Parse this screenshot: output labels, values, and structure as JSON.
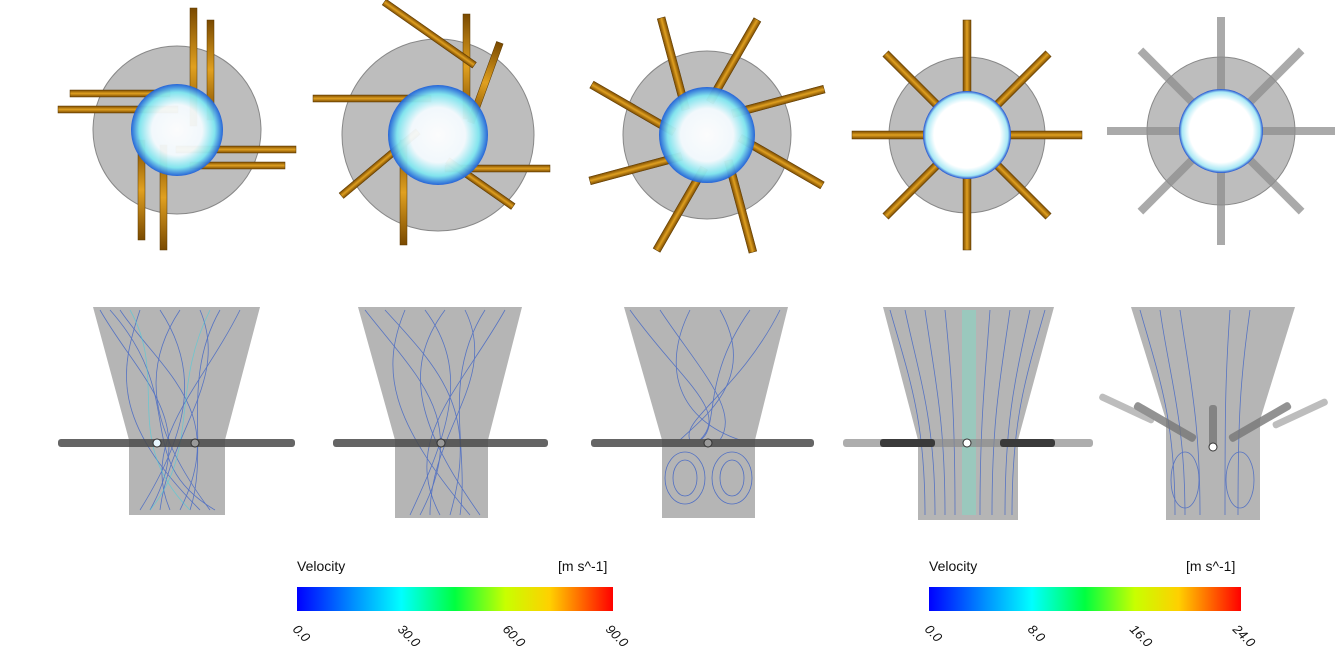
{
  "panels": {
    "top_views": [
      {
        "name": "top-view-1",
        "nozzles": 8,
        "swirl": "tangential"
      },
      {
        "name": "top-view-2",
        "nozzles": 8,
        "swirl": "tangential"
      },
      {
        "name": "top-view-3",
        "nozzles": 8,
        "swirl": "oblique"
      },
      {
        "name": "top-view-4",
        "nozzles": 8,
        "swirl": "radial"
      },
      {
        "name": "top-view-5",
        "nozzles": 8,
        "swirl": "radial-grey"
      }
    ],
    "side_views": [
      {
        "name": "side-view-1",
        "pattern": "crossing-streamlines"
      },
      {
        "name": "side-view-2",
        "pattern": "crossing-streamlines"
      },
      {
        "name": "side-view-3",
        "pattern": "recirculation-below"
      },
      {
        "name": "side-view-4",
        "pattern": "axial-streamlines"
      },
      {
        "name": "side-view-5",
        "pattern": "inclined-nozzles"
      }
    ]
  },
  "legends": [
    {
      "title": "Velocity",
      "unit": "[m s^-1]",
      "ticks": [
        "0.0",
        "30.0",
        "60.0",
        "90.0"
      ]
    },
    {
      "title": "Velocity",
      "unit": "[m s^-1]",
      "ticks": [
        "0.0",
        "8.0",
        "16.0",
        "24.0"
      ]
    }
  ],
  "colors": {
    "housing": "#bdbdbd",
    "nozzle": "#c7820a",
    "nozzle_grey": "#8e8e8e",
    "streamline_blue": "#2f58c8",
    "streamline_cyan": "#3fd0e0",
    "colormap": [
      "#0000ff",
      "#00a0ff",
      "#00ffff",
      "#00ff60",
      "#a0ff00",
      "#ffff00",
      "#ff8000",
      "#ff0000"
    ]
  }
}
